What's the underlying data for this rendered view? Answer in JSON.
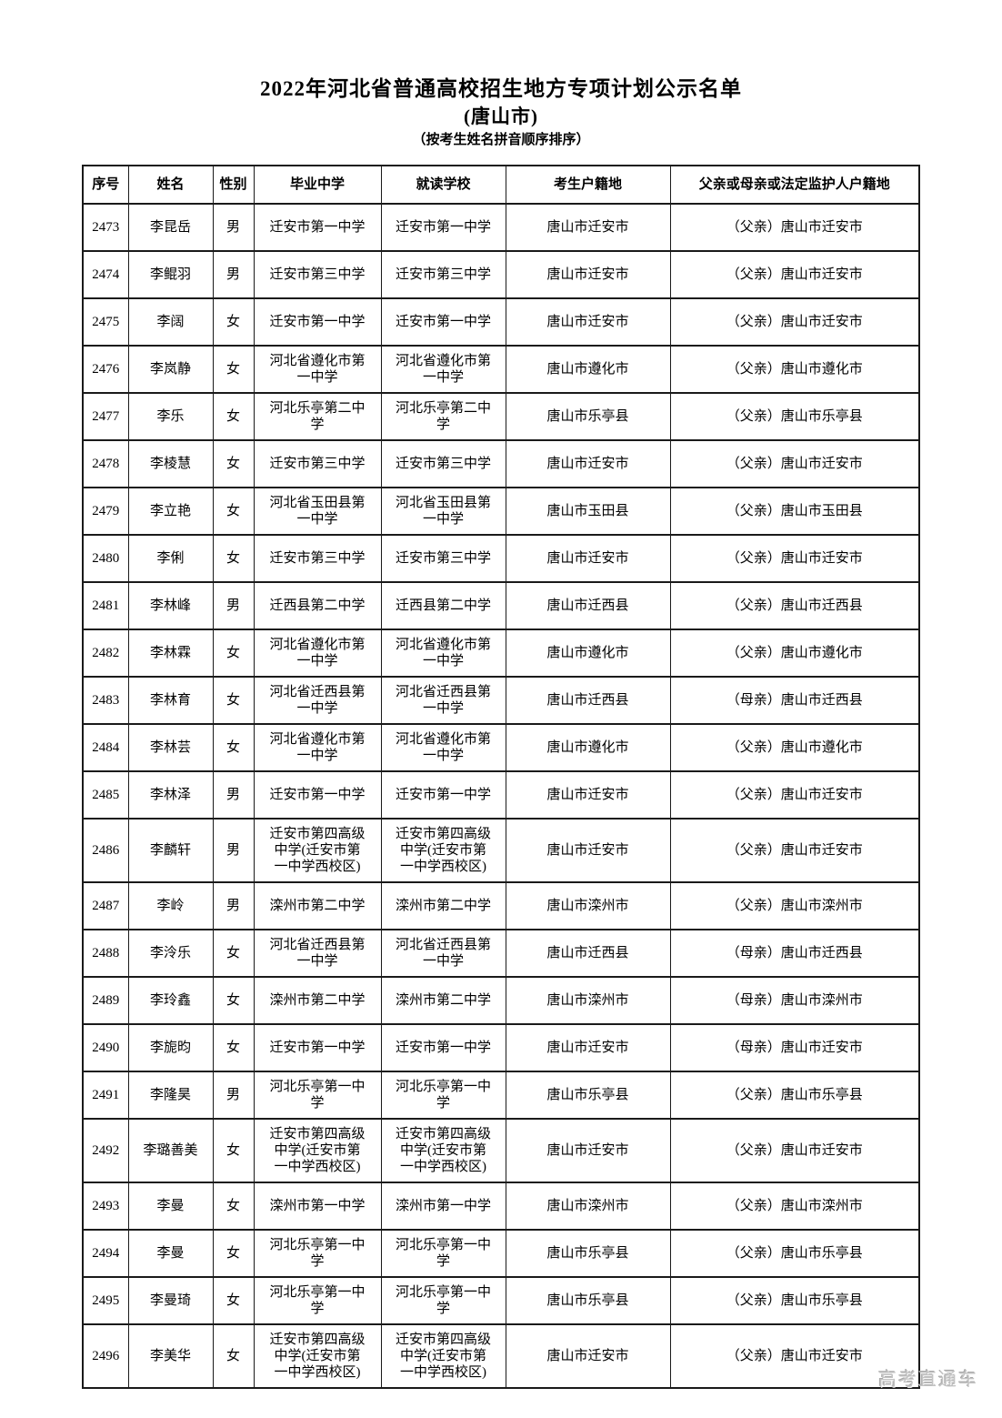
{
  "page": {
    "title": "2022年河北省普通高校招生地方专项计划公示名单",
    "subtitle": "(唐山市)",
    "sort_note": "（按考生姓名拼音顺序排序）",
    "watermark": "高考直通车"
  },
  "table": {
    "headers": [
      "序号",
      "姓名",
      "性别",
      "毕业中学",
      "就读学校",
      "考生户籍地",
      "父亲或母亲或法定监护人户籍地"
    ],
    "col_keys": [
      "no",
      "name",
      "gender",
      "graduated-school",
      "attending-school",
      "candidate-residence",
      "guardian-residence"
    ],
    "rows": [
      {
        "no": "2473",
        "name": "李昆岳",
        "gender": "男",
        "graduated": "迁安市第一中学",
        "attending": "迁安市第一中学",
        "residence": "唐山市迁安市",
        "guardian": "（父亲）唐山市迁安市"
      },
      {
        "no": "2474",
        "name": "李鲲羽",
        "gender": "男",
        "graduated": "迁安市第三中学",
        "attending": "迁安市第三中学",
        "residence": "唐山市迁安市",
        "guardian": "（父亲）唐山市迁安市"
      },
      {
        "no": "2475",
        "name": "李阔",
        "gender": "女",
        "graduated": "迁安市第一中学",
        "attending": "迁安市第一中学",
        "residence": "唐山市迁安市",
        "guardian": "（父亲）唐山市迁安市"
      },
      {
        "no": "2476",
        "name": "李岚静",
        "gender": "女",
        "graduated": "河北省遵化市第一中学",
        "attending": "河北省遵化市第一中学",
        "residence": "唐山市遵化市",
        "guardian": "（父亲）唐山市遵化市"
      },
      {
        "no": "2477",
        "name": "李乐",
        "gender": "女",
        "graduated": "河北乐亭第二中学",
        "attending": "河北乐亭第二中学",
        "residence": "唐山市乐亭县",
        "guardian": "（父亲）唐山市乐亭县"
      },
      {
        "no": "2478",
        "name": "李棱慧",
        "gender": "女",
        "graduated": "迁安市第三中学",
        "attending": "迁安市第三中学",
        "residence": "唐山市迁安市",
        "guardian": "（父亲）唐山市迁安市"
      },
      {
        "no": "2479",
        "name": "李立艳",
        "gender": "女",
        "graduated": "河北省玉田县第一中学",
        "attending": "河北省玉田县第一中学",
        "residence": "唐山市玉田县",
        "guardian": "（父亲）唐山市玉田县"
      },
      {
        "no": "2480",
        "name": "李俐",
        "gender": "女",
        "graduated": "迁安市第三中学",
        "attending": "迁安市第三中学",
        "residence": "唐山市迁安市",
        "guardian": "（父亲）唐山市迁安市"
      },
      {
        "no": "2481",
        "name": "李林峰",
        "gender": "男",
        "graduated": "迁西县第二中学",
        "attending": "迁西县第二中学",
        "residence": "唐山市迁西县",
        "guardian": "（父亲）唐山市迁西县"
      },
      {
        "no": "2482",
        "name": "李林霖",
        "gender": "女",
        "graduated": "河北省遵化市第一中学",
        "attending": "河北省遵化市第一中学",
        "residence": "唐山市遵化市",
        "guardian": "（父亲）唐山市遵化市"
      },
      {
        "no": "2483",
        "name": "李林育",
        "gender": "女",
        "graduated": "河北省迁西县第一中学",
        "attending": "河北省迁西县第一中学",
        "residence": "唐山市迁西县",
        "guardian": "（母亲）唐山市迁西县"
      },
      {
        "no": "2484",
        "name": "李林芸",
        "gender": "女",
        "graduated": "河北省遵化市第一中学",
        "attending": "河北省遵化市第一中学",
        "residence": "唐山市遵化市",
        "guardian": "（父亲）唐山市遵化市"
      },
      {
        "no": "2485",
        "name": "李林泽",
        "gender": "男",
        "graduated": "迁安市第一中学",
        "attending": "迁安市第一中学",
        "residence": "唐山市迁安市",
        "guardian": "（父亲）唐山市迁安市"
      },
      {
        "no": "2486",
        "name": "李麟轩",
        "gender": "男",
        "graduated": "迁安市第四高级中学(迁安市第一中学西校区)",
        "attending": "迁安市第四高级中学(迁安市第一中学西校区)",
        "residence": "唐山市迁安市",
        "guardian": "（父亲）唐山市迁安市"
      },
      {
        "no": "2487",
        "name": "李岭",
        "gender": "男",
        "graduated": "滦州市第二中学",
        "attending": "滦州市第二中学",
        "residence": "唐山市滦州市",
        "guardian": "（父亲）唐山市滦州市"
      },
      {
        "no": "2488",
        "name": "李泠乐",
        "gender": "女",
        "graduated": "河北省迁西县第一中学",
        "attending": "河北省迁西县第一中学",
        "residence": "唐山市迁西县",
        "guardian": "（母亲）唐山市迁西县"
      },
      {
        "no": "2489",
        "name": "李玲鑫",
        "gender": "女",
        "graduated": "滦州市第二中学",
        "attending": "滦州市第二中学",
        "residence": "唐山市滦州市",
        "guardian": "（母亲）唐山市滦州市"
      },
      {
        "no": "2490",
        "name": "李旎昀",
        "gender": "女",
        "graduated": "迁安市第一中学",
        "attending": "迁安市第一中学",
        "residence": "唐山市迁安市",
        "guardian": "（母亲）唐山市迁安市"
      },
      {
        "no": "2491",
        "name": "李隆昊",
        "gender": "男",
        "graduated": "河北乐亭第一中学",
        "attending": "河北乐亭第一中学",
        "residence": "唐山市乐亭县",
        "guardian": "（父亲）唐山市乐亭县"
      },
      {
        "no": "2492",
        "name": "李璐善美",
        "gender": "女",
        "graduated": "迁安市第四高级中学(迁安市第一中学西校区)",
        "attending": "迁安市第四高级中学(迁安市第一中学西校区)",
        "residence": "唐山市迁安市",
        "guardian": "（父亲）唐山市迁安市"
      },
      {
        "no": "2493",
        "name": "李曼",
        "gender": "女",
        "graduated": "滦州市第一中学",
        "attending": "滦州市第一中学",
        "residence": "唐山市滦州市",
        "guardian": "（父亲）唐山市滦州市"
      },
      {
        "no": "2494",
        "name": "李曼",
        "gender": "女",
        "graduated": "河北乐亭第一中学",
        "attending": "河北乐亭第一中学",
        "residence": "唐山市乐亭县",
        "guardian": "（父亲）唐山市乐亭县"
      },
      {
        "no": "2495",
        "name": "李曼琦",
        "gender": "女",
        "graduated": "河北乐亭第一中学",
        "attending": "河北乐亭第一中学",
        "residence": "唐山市乐亭县",
        "guardian": "（父亲）唐山市乐亭县"
      },
      {
        "no": "2496",
        "name": "李美华",
        "gender": "女",
        "graduated": "迁安市第四高级中学(迁安市第一中学西校区)",
        "attending": "迁安市第四高级中学(迁安市第一中学西校区)",
        "residence": "唐山市迁安市",
        "guardian": "（父亲）唐山市迁安市"
      }
    ]
  }
}
